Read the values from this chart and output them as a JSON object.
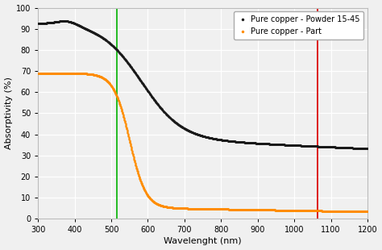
{
  "title": "",
  "xlabel": "Wavelenght (nm)",
  "ylabel": "Absorptivity (%)",
  "xlim": [
    300,
    1200
  ],
  "ylim": [
    0,
    100
  ],
  "xticks": [
    300,
    400,
    500,
    600,
    700,
    800,
    900,
    1000,
    1100,
    1200
  ],
  "yticks": [
    0,
    10,
    20,
    30,
    40,
    50,
    60,
    70,
    80,
    90,
    100
  ],
  "green_line_x": 515,
  "red_line_x": 1064,
  "legend": [
    {
      "label": "Pure copper - Powder 15-45",
      "color": "#1a1a1a"
    },
    {
      "label": "Pure copper - Part",
      "color": "#FF8C00"
    }
  ],
  "background_color": "#f0f0f0",
  "plot_bg_color": "#f0f0f0",
  "grid_color": "#ffffff",
  "spine_color": "#bbbbbb",
  "tick_labelsize": 7,
  "axis_labelsize": 8
}
